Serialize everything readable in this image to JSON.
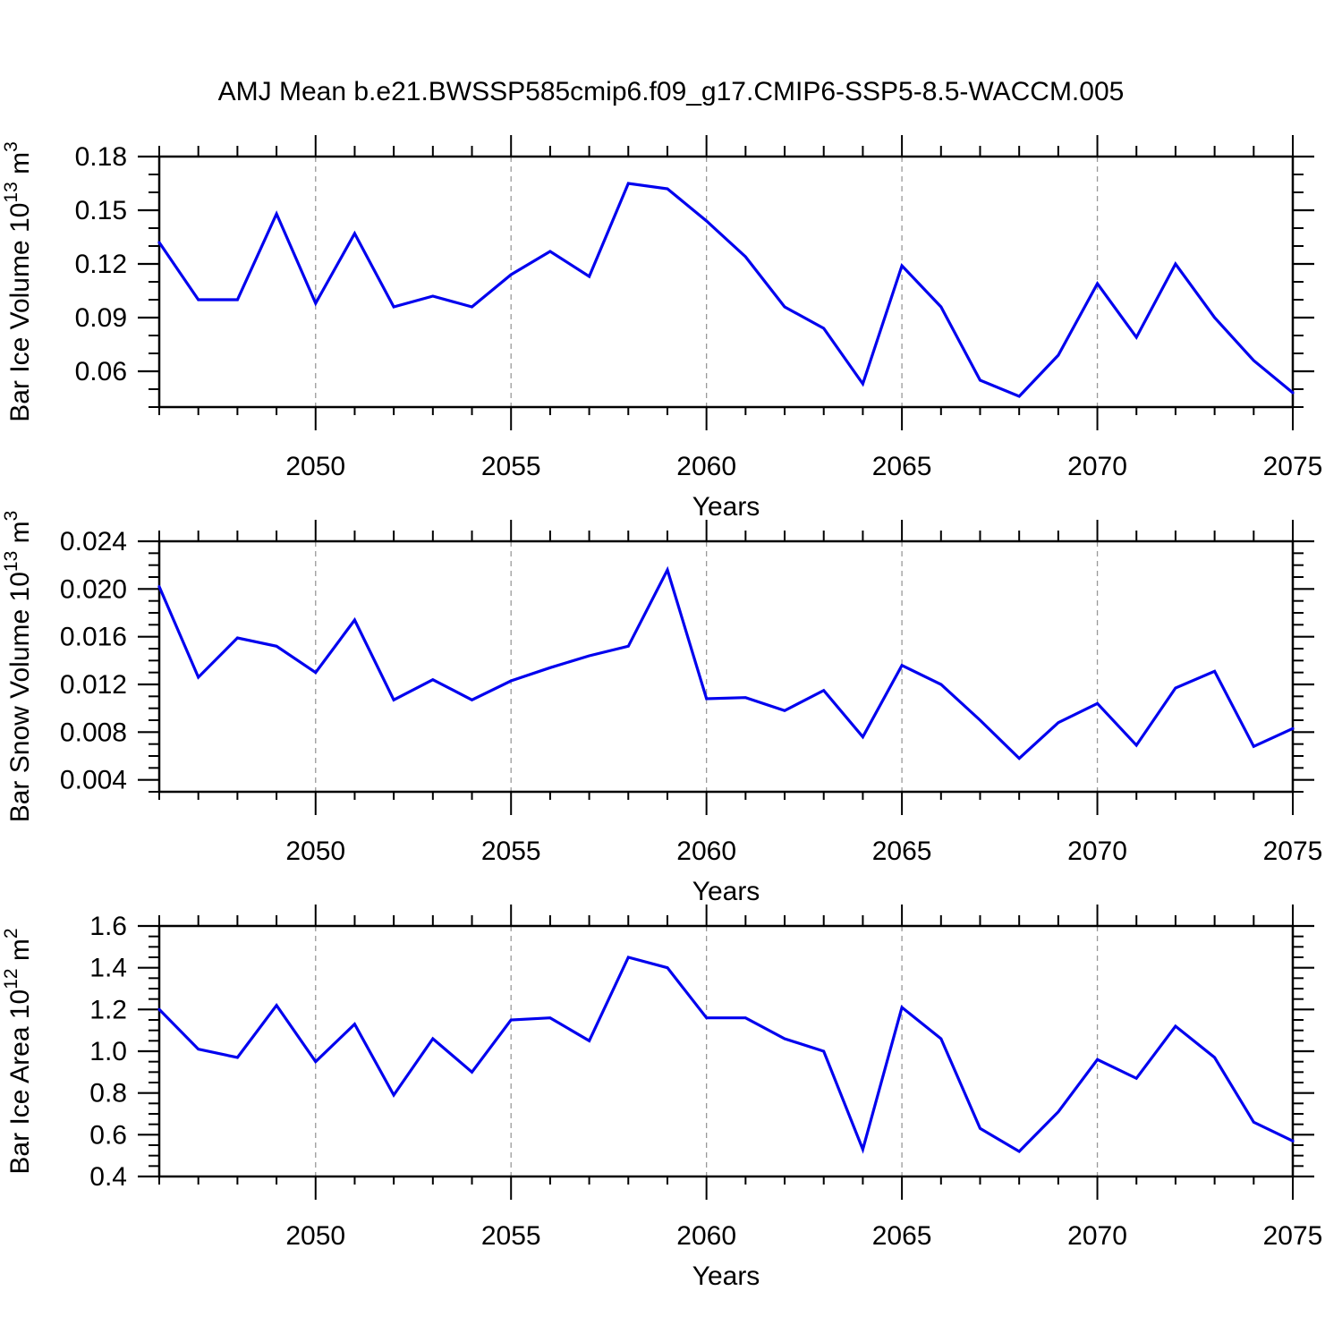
{
  "title": "AMJ Mean b.e21.BWSSP585cmip6.f09_g17.CMIP6-SSP5-8.5-WACCM.005",
  "line_color": "#0000ee",
  "gridline_color": "#999999",
  "x_axis": {
    "label": "Years",
    "min": 2046,
    "max": 2075,
    "major_ticks": [
      2050,
      2055,
      2060,
      2065,
      2070,
      2075
    ],
    "gridlines": [
      2050,
      2055,
      2060,
      2065,
      2070
    ],
    "minor_step": 1
  },
  "chart_data": [
    {
      "type": "line",
      "ylabel_text": "Bar Ice Volume 10^13 m^3",
      "ylabel_parts": [
        {
          "t": "Bar Ice Volume 10",
          "sup": false
        },
        {
          "t": "13",
          "sup": true
        },
        {
          "t": " m",
          "sup": false
        },
        {
          "t": "3",
          "sup": true
        }
      ],
      "xlabel": "Years",
      "ylim": [
        0.04,
        0.18
      ],
      "yticks": [
        0.06,
        0.09,
        0.12,
        0.15,
        0.18
      ],
      "ytick_labels": [
        "0.06",
        "0.09",
        "0.12",
        "0.15",
        "0.18"
      ],
      "y_minor_step": 0.01,
      "x": [
        2046,
        2047,
        2048,
        2049,
        2050,
        2051,
        2052,
        2053,
        2054,
        2055,
        2056,
        2057,
        2058,
        2059,
        2060,
        2061,
        2062,
        2063,
        2064,
        2065,
        2066,
        2067,
        2068,
        2069,
        2070,
        2071,
        2072,
        2073,
        2074,
        2075
      ],
      "values": [
        0.132,
        0.1,
        0.1,
        0.148,
        0.098,
        0.137,
        0.096,
        0.102,
        0.096,
        0.114,
        0.127,
        0.113,
        0.165,
        0.162,
        0.144,
        0.124,
        0.096,
        0.084,
        0.053,
        0.119,
        0.096,
        0.055,
        0.046,
        0.069,
        0.109,
        0.079,
        0.12,
        0.09,
        0.066,
        0.048
      ]
    },
    {
      "type": "line",
      "ylabel_text": "Bar Snow Volume 10^13 m^3",
      "ylabel_parts": [
        {
          "t": "Bar Snow Volume 10",
          "sup": false
        },
        {
          "t": "13",
          "sup": true
        },
        {
          "t": " m",
          "sup": false
        },
        {
          "t": "3",
          "sup": true
        }
      ],
      "xlabel": "Years",
      "ylim": [
        0.003,
        0.024
      ],
      "yticks": [
        0.004,
        0.008,
        0.012,
        0.016,
        0.02,
        0.024
      ],
      "ytick_labels": [
        "0.004",
        "0.008",
        "0.012",
        "0.016",
        "0.020",
        "0.024"
      ],
      "y_minor_step": 0.001,
      "x": [
        2046,
        2047,
        2048,
        2049,
        2050,
        2051,
        2052,
        2053,
        2054,
        2055,
        2056,
        2057,
        2058,
        2059,
        2060,
        2061,
        2062,
        2063,
        2064,
        2065,
        2066,
        2067,
        2068,
        2069,
        2070,
        2071,
        2072,
        2073,
        2074,
        2075
      ],
      "values": [
        0.0202,
        0.0126,
        0.0159,
        0.0152,
        0.013,
        0.0174,
        0.0107,
        0.0124,
        0.0107,
        0.0123,
        0.0134,
        0.0144,
        0.0152,
        0.0216,
        0.0108,
        0.0109,
        0.0098,
        0.0115,
        0.0076,
        0.0136,
        0.012,
        0.009,
        0.0058,
        0.0088,
        0.0104,
        0.0069,
        0.0117,
        0.0131,
        0.0068,
        0.0083
      ]
    },
    {
      "type": "line",
      "ylabel_text": "Bar Ice Area 10^12 m^2",
      "ylabel_parts": [
        {
          "t": "Bar Ice Area 10",
          "sup": false
        },
        {
          "t": "12",
          "sup": true
        },
        {
          "t": " m",
          "sup": false
        },
        {
          "t": "2",
          "sup": true
        }
      ],
      "xlabel": "Years",
      "ylim": [
        0.4,
        1.6
      ],
      "yticks": [
        0.4,
        0.6,
        0.8,
        1.0,
        1.2,
        1.4,
        1.6
      ],
      "ytick_labels": [
        "0.4",
        "0.6",
        "0.8",
        "1.0",
        "1.2",
        "1.4",
        "1.6"
      ],
      "y_minor_step": 0.05,
      "x": [
        2046,
        2047,
        2048,
        2049,
        2050,
        2051,
        2052,
        2053,
        2054,
        2055,
        2056,
        2057,
        2058,
        2059,
        2060,
        2061,
        2062,
        2063,
        2064,
        2065,
        2066,
        2067,
        2068,
        2069,
        2070,
        2071,
        2072,
        2073,
        2074,
        2075
      ],
      "values": [
        1.2,
        1.01,
        0.97,
        1.22,
        0.95,
        1.13,
        0.79,
        1.06,
        0.9,
        1.15,
        1.16,
        1.05,
        1.45,
        1.4,
        1.16,
        1.16,
        1.06,
        1.0,
        0.53,
        1.21,
        1.06,
        0.63,
        0.52,
        0.71,
        0.96,
        0.87,
        1.12,
        0.97,
        0.66,
        0.57
      ]
    }
  ]
}
